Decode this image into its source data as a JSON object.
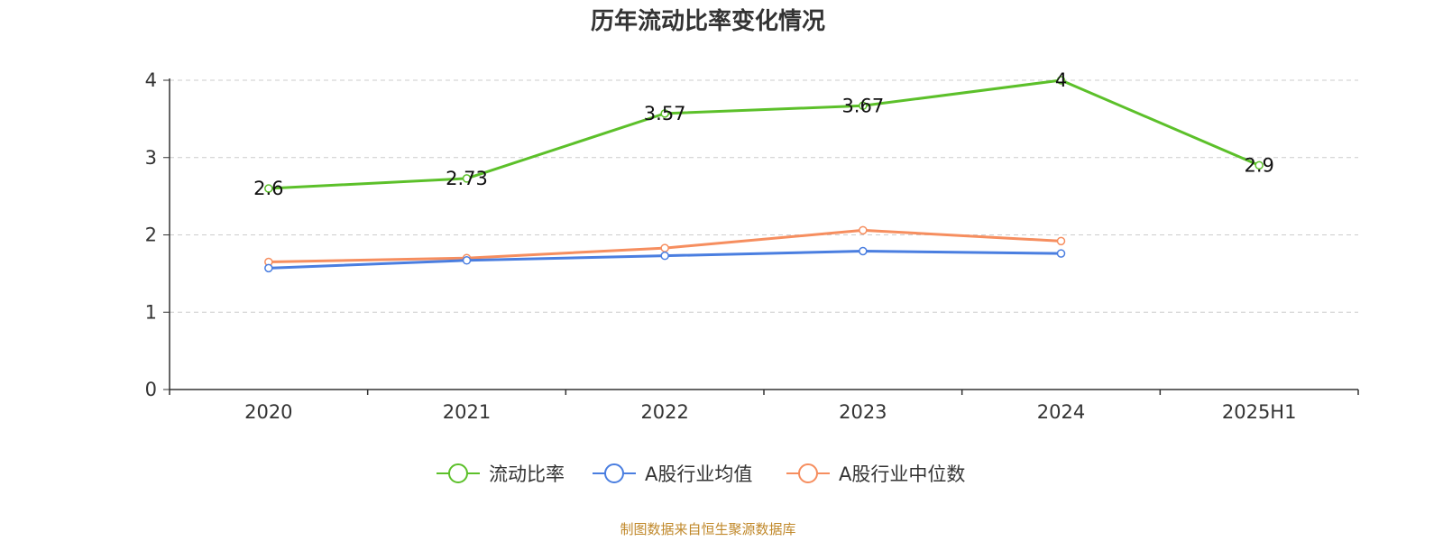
{
  "chart_data": {
    "type": "line",
    "title": "历年流动比率变化情况",
    "categories": [
      "2020",
      "2021",
      "2022",
      "2023",
      "2024",
      "2025H1"
    ],
    "ylim": [
      0,
      4
    ],
    "yticks": [
      "0",
      "1",
      "2",
      "3",
      "4"
    ],
    "grid": true,
    "legend_position": "bottom-center",
    "series": [
      {
        "name": "流动比率",
        "color": "#5cc02a",
        "values": [
          2.6,
          2.73,
          3.57,
          3.67,
          4,
          2.9
        ],
        "labels": [
          "2.6",
          "2.73",
          "3.57",
          "3.67",
          "4",
          "2.9"
        ],
        "show_labels": true
      },
      {
        "name": "A股行业均值",
        "color": "#4a7ee0",
        "values": [
          1.57,
          1.67,
          1.73,
          1.79,
          1.76,
          null
        ],
        "show_labels": false
      },
      {
        "name": "A股行业中位数",
        "color": "#f68e5f",
        "values": [
          1.65,
          1.7,
          1.83,
          2.06,
          1.92,
          null
        ],
        "show_labels": false
      }
    ],
    "source": "制图数据来自恒生聚源数据库"
  }
}
